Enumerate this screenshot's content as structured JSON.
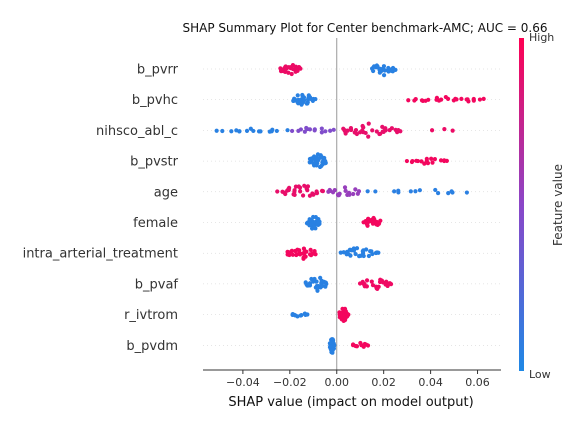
{
  "chart_data": {
    "type": "scatter",
    "subtype": "shap-beeswarm",
    "title": "SHAP Summary Plot for Center benchmark-AMC; AUC = 0.66",
    "xlabel": "SHAP value (impact on model output)",
    "xlim": [
      -0.057,
      0.07
    ],
    "xticks": [
      -0.04,
      -0.02,
      0.0,
      0.02,
      0.04,
      0.06
    ],
    "xtick_labels": [
      "−0.04",
      "−0.02",
      "0.00",
      "0.02",
      "0.04",
      "0.06"
    ],
    "colorbar": {
      "label": "Feature value",
      "high": "High",
      "low": "Low",
      "color_low": "#1E88E5",
      "color_high": "#FF0052"
    },
    "features": [
      {
        "name": "b_pvrr",
        "clusters": [
          {
            "min": -0.025,
            "max": -0.015,
            "n": 26,
            "color": 0.92,
            "spread": 1.0
          },
          {
            "min": 0.014,
            "max": 0.026,
            "n": 28,
            "color": 0.05,
            "spread": 1.0
          }
        ]
      },
      {
        "name": "b_pvhc",
        "clusters": [
          {
            "min": -0.019,
            "max": -0.009,
            "n": 32,
            "color": 0.05,
            "spread": 1.1
          },
          {
            "min": 0.03,
            "max": 0.064,
            "n": 24,
            "color": 0.95,
            "spread": 0.45
          }
        ]
      },
      {
        "name": "nihsco_abl_c",
        "clusters": [
          {
            "min": -0.052,
            "max": -0.02,
            "n": 16,
            "color": 0.05,
            "spread": 0.3
          },
          {
            "min": -0.02,
            "max": 0.0,
            "n": 14,
            "color": 0.45,
            "spread": 0.5
          },
          {
            "min": 0.0,
            "max": 0.028,
            "n": 34,
            "color": 0.9,
            "spread": 1.0
          },
          {
            "min": 0.04,
            "max": 0.051,
            "n": 3,
            "color": 0.92,
            "spread": 0.2
          }
        ]
      },
      {
        "name": "b_pvstr",
        "clusters": [
          {
            "min": -0.012,
            "max": -0.004,
            "n": 36,
            "color": 0.05,
            "spread": 1.2
          },
          {
            "min": 0.029,
            "max": 0.048,
            "n": 18,
            "color": 0.95,
            "spread": 0.5
          }
        ]
      },
      {
        "name": "age",
        "clusters": [
          {
            "min": -0.026,
            "max": -0.005,
            "n": 30,
            "color": 0.9,
            "spread": 1.0
          },
          {
            "min": -0.005,
            "max": 0.01,
            "n": 18,
            "color": 0.55,
            "spread": 0.9
          },
          {
            "min": 0.012,
            "max": 0.059,
            "n": 14,
            "color": 0.06,
            "spread": 0.5
          }
        ]
      },
      {
        "name": "female",
        "clusters": [
          {
            "min": -0.013,
            "max": -0.007,
            "n": 34,
            "color": 0.05,
            "spread": 1.2
          },
          {
            "min": 0.011,
            "max": 0.019,
            "n": 24,
            "color": 0.95,
            "spread": 0.9
          }
        ]
      },
      {
        "name": "intra_arterial_treatment",
        "clusters": [
          {
            "min": -0.022,
            "max": -0.008,
            "n": 30,
            "color": 0.95,
            "spread": 1.0
          },
          {
            "min": 0.001,
            "max": 0.019,
            "n": 28,
            "color": 0.05,
            "spread": 0.9
          }
        ]
      },
      {
        "name": "b_pvaf",
        "clusters": [
          {
            "min": -0.014,
            "max": -0.003,
            "n": 30,
            "color": 0.05,
            "spread": 1.1
          },
          {
            "min": 0.009,
            "max": 0.024,
            "n": 24,
            "color": 0.93,
            "spread": 0.8
          }
        ]
      },
      {
        "name": "r_ivtrom",
        "clusters": [
          {
            "min": -0.02,
            "max": -0.012,
            "n": 10,
            "color": 0.05,
            "spread": 0.3
          },
          {
            "min": 0.001,
            "max": 0.005,
            "n": 36,
            "color": 0.95,
            "spread": 1.3
          }
        ]
      },
      {
        "name": "b_pvdm",
        "clusters": [
          {
            "min": -0.003,
            "max": -0.001,
            "n": 34,
            "color": 0.05,
            "spread": 1.3
          },
          {
            "min": 0.006,
            "max": 0.014,
            "n": 10,
            "color": 0.95,
            "spread": 0.4
          }
        ]
      }
    ]
  }
}
